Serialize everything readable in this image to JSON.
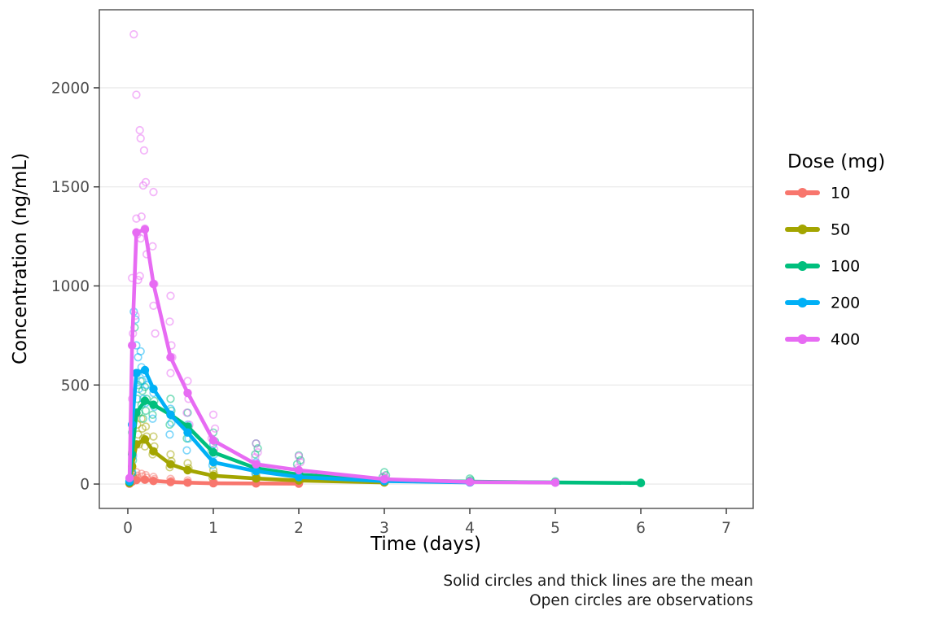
{
  "chart_data": {
    "type": "line",
    "title": "",
    "xlabel": "Time (days)",
    "ylabel": "Concentration (ng/mL)",
    "xlim": [
      -0.333,
      7.314
    ],
    "ylim": [
      -123,
      2394
    ],
    "xticks": [
      0,
      1,
      2,
      3,
      4,
      5,
      6,
      7
    ],
    "yticks": [
      0,
      500,
      1000,
      1500,
      2000
    ],
    "grid": "horizontal-major-only",
    "panel_border_color": "#4d4d4d",
    "gridline_color": "#ebebeb",
    "caption": [
      "Solid circles and thick lines are the mean",
      "Open circles are observations"
    ],
    "legend": {
      "title": "Dose (mg)",
      "position": "right",
      "entries": [
        "10",
        "50",
        "100",
        "200",
        "400"
      ]
    },
    "series": [
      {
        "name": "10",
        "dose_mg": 10,
        "color": "#F8766D",
        "mean": {
          "t": [
            0.02,
            0.05,
            0.1,
            0.2,
            0.3,
            0.5,
            0.7,
            1.0,
            1.5,
            2.0
          ],
          "conc": [
            2,
            12,
            20,
            22,
            16,
            10,
            7,
            4,
            3,
            2
          ]
        },
        "observations": [
          [
            0.06,
            45
          ],
          [
            0.05,
            25
          ],
          [
            0.05,
            12
          ],
          [
            0.1,
            60
          ],
          [
            0.11,
            42
          ],
          [
            0.12,
            30
          ],
          [
            0.16,
            52
          ],
          [
            0.17,
            38
          ],
          [
            0.21,
            45
          ],
          [
            0.22,
            32
          ],
          [
            0.3,
            36
          ],
          [
            0.31,
            25
          ],
          [
            0.5,
            26
          ],
          [
            0.51,
            16
          ],
          [
            0.7,
            18
          ],
          [
            1.0,
            12
          ],
          [
            1.01,
            7
          ],
          [
            1.5,
            8
          ],
          [
            2.0,
            5
          ]
        ]
      },
      {
        "name": "50",
        "dose_mg": 50,
        "color": "#A3A500",
        "mean": {
          "t": [
            0.02,
            0.05,
            0.1,
            0.2,
            0.3,
            0.5,
            0.7,
            1.0,
            1.5,
            2.0,
            3.0
          ],
          "conc": [
            5,
            90,
            200,
            225,
            165,
            100,
            70,
            42,
            28,
            18,
            8
          ]
        },
        "observations": [
          [
            0.06,
            310
          ],
          [
            0.05,
            160
          ],
          [
            0.05,
            80
          ],
          [
            0.06,
            35
          ],
          [
            0.1,
            360
          ],
          [
            0.11,
            300
          ],
          [
            0.12,
            250
          ],
          [
            0.13,
            200
          ],
          [
            0.16,
            330
          ],
          [
            0.17,
            280
          ],
          [
            0.18,
            230
          ],
          [
            0.21,
            290
          ],
          [
            0.22,
            240
          ],
          [
            0.2,
            190
          ],
          [
            0.3,
            240
          ],
          [
            0.31,
            190
          ],
          [
            0.29,
            150
          ],
          [
            0.5,
            150
          ],
          [
            0.51,
            115
          ],
          [
            0.49,
            85
          ],
          [
            0.7,
            105
          ],
          [
            0.71,
            80
          ],
          [
            1.0,
            70
          ],
          [
            1.01,
            50
          ],
          [
            0.99,
            32
          ],
          [
            1.5,
            45
          ],
          [
            1.51,
            30
          ],
          [
            2.0,
            26
          ],
          [
            2.01,
            15
          ],
          [
            3.0,
            9
          ]
        ]
      },
      {
        "name": "100",
        "dose_mg": 100,
        "color": "#00BF7D",
        "mean": {
          "t": [
            0.02,
            0.05,
            0.1,
            0.2,
            0.3,
            0.5,
            0.7,
            1.0,
            1.5,
            2.0,
            3.0,
            4.0,
            5.0,
            6.0
          ],
          "conc": [
            10,
            150,
            360,
            420,
            400,
            350,
            290,
            160,
            80,
            48,
            20,
            12,
            8,
            5
          ]
        },
        "observations": [
          [
            0.08,
            790
          ],
          [
            0.05,
            260
          ],
          [
            0.06,
            120
          ],
          [
            0.05,
            55
          ],
          [
            0.1,
            560
          ],
          [
            0.12,
            500
          ],
          [
            0.11,
            430
          ],
          [
            0.13,
            360
          ],
          [
            0.15,
            520
          ],
          [
            0.17,
            470
          ],
          [
            0.16,
            400
          ],
          [
            0.18,
            330
          ],
          [
            0.2,
            490
          ],
          [
            0.22,
            430
          ],
          [
            0.21,
            370
          ],
          [
            0.3,
            480
          ],
          [
            0.31,
            420
          ],
          [
            0.29,
            350
          ],
          [
            0.5,
            430
          ],
          [
            0.51,
            370
          ],
          [
            0.49,
            300
          ],
          [
            0.7,
            360
          ],
          [
            0.71,
            290
          ],
          [
            0.69,
            230
          ],
          [
            1.0,
            260
          ],
          [
            1.02,
            215
          ],
          [
            0.98,
            170
          ],
          [
            1.5,
            205
          ],
          [
            1.52,
            180
          ],
          [
            1.49,
            150
          ],
          [
            2.0,
            145
          ],
          [
            2.02,
            120
          ],
          [
            1.98,
            100
          ],
          [
            3.0,
            60
          ],
          [
            3.02,
            45
          ],
          [
            2.98,
            35
          ],
          [
            4.0,
            28
          ],
          [
            4.01,
            20
          ],
          [
            5.0,
            14
          ],
          [
            6.0,
            8
          ]
        ]
      },
      {
        "name": "200",
        "dose_mg": 200,
        "color": "#00B0F6",
        "mean": {
          "t": [
            0.02,
            0.05,
            0.1,
            0.2,
            0.3,
            0.5,
            0.7,
            1.0,
            1.5,
            2.0,
            3.0,
            4.0
          ],
          "conc": [
            15,
            300,
            560,
            575,
            480,
            350,
            260,
            110,
            65,
            35,
            15,
            8
          ]
        },
        "observations": [
          [
            0.07,
            870
          ],
          [
            0.09,
            830
          ],
          [
            0.05,
            300
          ],
          [
            0.06,
            140
          ],
          [
            0.05,
            60
          ],
          [
            0.1,
            700
          ],
          [
            0.12,
            640
          ],
          [
            0.11,
            560
          ],
          [
            0.13,
            480
          ],
          [
            0.15,
            670
          ],
          [
            0.16,
            590
          ],
          [
            0.17,
            520
          ],
          [
            0.18,
            430
          ],
          [
            0.2,
            560
          ],
          [
            0.22,
            500
          ],
          [
            0.21,
            410
          ],
          [
            0.3,
            460
          ],
          [
            0.31,
            390
          ],
          [
            0.29,
            330
          ],
          [
            0.5,
            380
          ],
          [
            0.51,
            310
          ],
          [
            0.49,
            250
          ],
          [
            0.7,
            300
          ],
          [
            0.71,
            230
          ],
          [
            0.69,
            170
          ],
          [
            1.0,
            200
          ],
          [
            1.01,
            150
          ],
          [
            0.99,
            95
          ],
          [
            1.5,
            110
          ],
          [
            1.51,
            80
          ],
          [
            1.49,
            55
          ],
          [
            2.0,
            60
          ],
          [
            2.01,
            38
          ],
          [
            3.0,
            20
          ],
          [
            3.01,
            12
          ],
          [
            4.0,
            9
          ]
        ]
      },
      {
        "name": "400",
        "dose_mg": 400,
        "color": "#E76BF3",
        "mean": {
          "t": [
            0.02,
            0.05,
            0.1,
            0.2,
            0.3,
            0.5,
            0.7,
            1.0,
            1.5,
            2.0,
            3.0,
            4.0,
            5.0
          ],
          "conc": [
            30,
            700,
            1270,
            1285,
            1010,
            640,
            460,
            220,
            100,
            70,
            25,
            10,
            7
          ]
        },
        "observations": [
          [
            0.07,
            2270
          ],
          [
            0.05,
            1040
          ],
          [
            0.06,
            760
          ],
          [
            0.05,
            430
          ],
          [
            0.06,
            150
          ],
          [
            0.1,
            1965
          ],
          [
            0.1,
            1340
          ],
          [
            0.11,
            1260
          ],
          [
            0.12,
            1030
          ],
          [
            0.09,
            850
          ],
          [
            0.14,
            1786
          ],
          [
            0.15,
            1745
          ],
          [
            0.16,
            1350
          ],
          [
            0.15,
            1240
          ],
          [
            0.14,
            1050
          ],
          [
            0.19,
            1684
          ],
          [
            0.21,
            1524
          ],
          [
            0.18,
            1507
          ],
          [
            0.2,
            1290
          ],
          [
            0.22,
            1160
          ],
          [
            0.3,
            1474
          ],
          [
            0.29,
            1200
          ],
          [
            0.31,
            1010
          ],
          [
            0.3,
            900
          ],
          [
            0.32,
            760
          ],
          [
            0.5,
            950
          ],
          [
            0.49,
            820
          ],
          [
            0.51,
            700
          ],
          [
            0.52,
            640
          ],
          [
            0.5,
            560
          ],
          [
            0.7,
            520
          ],
          [
            0.71,
            430
          ],
          [
            0.69,
            360
          ],
          [
            0.72,
            300
          ],
          [
            1.0,
            350
          ],
          [
            1.02,
            280
          ],
          [
            0.98,
            230
          ],
          [
            1.01,
            175
          ],
          [
            1.5,
            205
          ],
          [
            1.52,
            160
          ],
          [
            1.49,
            135
          ],
          [
            1.51,
            100
          ],
          [
            2.0,
            140
          ],
          [
            2.02,
            110
          ],
          [
            1.98,
            80
          ],
          [
            2.01,
            60
          ],
          [
            3.0,
            40
          ],
          [
            3.02,
            28
          ],
          [
            2.98,
            18
          ],
          [
            4.0,
            14
          ],
          [
            4.01,
            9
          ],
          [
            5.0,
            7
          ]
        ]
      }
    ]
  }
}
